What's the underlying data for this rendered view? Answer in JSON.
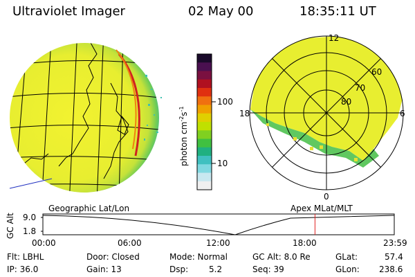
{
  "header": {
    "title": "Ultraviolet Imager",
    "date": "02 May 00",
    "time": "18:35:11 UT"
  },
  "colorbar": {
    "label": "photon cm",
    "label_exp1": "-2",
    "label_mid": "s",
    "label_exp2": "-1",
    "ticks": [
      "100",
      "10"
    ],
    "colors": [
      "#1a0a2a",
      "#4a1050",
      "#7a1040",
      "#b01020",
      "#e03010",
      "#f07010",
      "#f0a000",
      "#e0d000",
      "#c0e000",
      "#80d020",
      "#40c040",
      "#20b080",
      "#40c0c0",
      "#80d8e0",
      "#c8e8f0",
      "#f0f0f0"
    ]
  },
  "polar": {
    "mlt_labels": {
      "top": "12",
      "left": "18",
      "right": "6",
      "bottom": "0"
    },
    "lat_labels": [
      "60",
      "70",
      "80"
    ]
  },
  "timeline": {
    "left_label": "Geographic Lat/Lon",
    "right_label": "Apex MLat/MLT",
    "yaxis_title": "GC Alt",
    "yticks": [
      "9.0",
      "1.8"
    ],
    "xticks": [
      "00:00",
      "06:00",
      "12:00",
      "18:00",
      "23:59"
    ],
    "marker_time_hours": 18.586,
    "marker_color": "#e02020"
  },
  "info": {
    "flt": "Flt: LBHL",
    "ip": "IP: 36.0",
    "door": "Door: Closed",
    "gain": "Gain: 13",
    "mode": "Mode: Normal",
    "dsp_label": "Dsp:",
    "dsp_value": "5.2",
    "gcalt": "GC Alt: 8.0 Re",
    "seq": "Seq: 39",
    "glat_label": "GLat:",
    "glat_value": "57.4",
    "glon_label": "GLon:",
    "glon_value": "238.6"
  }
}
